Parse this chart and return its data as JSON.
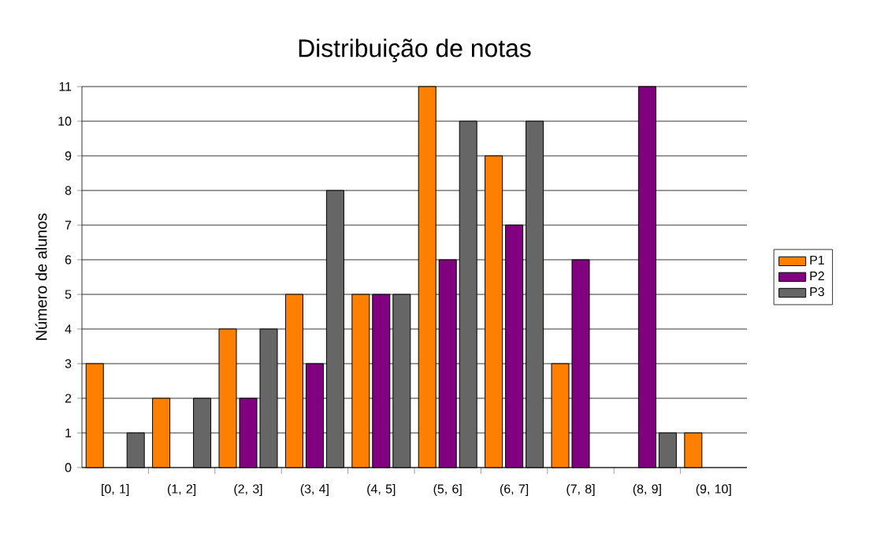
{
  "chart_data": {
    "type": "bar",
    "title": "Distribuição de notas",
    "ylabel": "Número de alunos",
    "categories": [
      "[0, 1]",
      "(1, 2]",
      "(2, 3]",
      "(3, 4]",
      "(4, 5]",
      "(5, 6]",
      "(6, 7]",
      "(7, 8]",
      "(8, 9]",
      "(9, 10]"
    ],
    "series": [
      {
        "name": "P1",
        "color": "#ff7f00",
        "values": [
          3,
          2,
          4,
          5,
          5,
          11,
          9,
          3,
          0,
          1
        ]
      },
      {
        "name": "P2",
        "color": "#800080",
        "values": [
          0,
          0,
          2,
          3,
          5,
          6,
          7,
          6,
          11,
          0
        ]
      },
      {
        "name": "P3",
        "color": "#666666",
        "values": [
          1,
          2,
          4,
          8,
          5,
          10,
          10,
          0,
          1,
          0
        ]
      }
    ],
    "ylim": [
      0,
      11
    ],
    "yticks": [
      0,
      1,
      2,
      3,
      4,
      5,
      6,
      7,
      8,
      9,
      10,
      11
    ],
    "grid": "y",
    "legend": "right"
  }
}
